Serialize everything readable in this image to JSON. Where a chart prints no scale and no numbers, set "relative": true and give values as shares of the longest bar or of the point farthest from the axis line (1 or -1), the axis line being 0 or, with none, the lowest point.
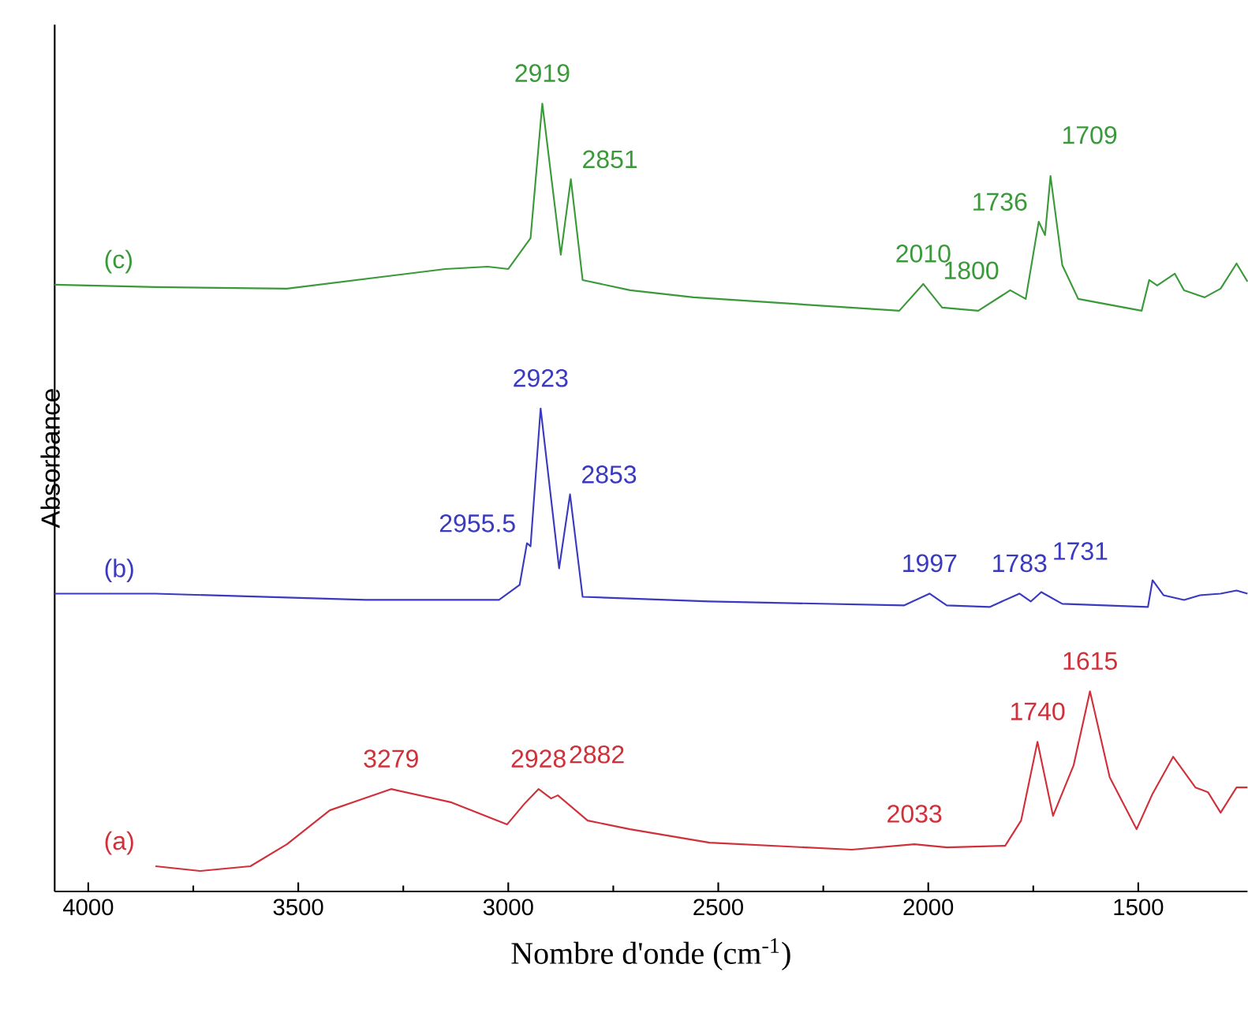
{
  "chart_data": {
    "type": "line",
    "relative": true,
    "xlabel": "Nombre d'onde (cm$^{-1}$)",
    "ylabel": "Absorbance",
    "xlim": [
      4080,
      1240
    ],
    "xticks": [
      4000,
      3500,
      3000,
      2500,
      2000,
      1500
    ],
    "marker": "none",
    "line_style": "solid",
    "grid": false,
    "series": [
      {
        "name": "(c)",
        "color": "#3a9a3a",
        "x": [
          4080,
          3840,
          3527,
          3150,
          3049,
          3000,
          2947,
          2919,
          2875,
          2851,
          2823,
          2710,
          2559,
          2069,
          2012,
          1967,
          1881,
          1805,
          1768,
          1737,
          1722,
          1709,
          1681,
          1643,
          1492,
          1474,
          1455,
          1413,
          1391,
          1342,
          1304,
          1266,
          1240
        ],
        "values": [
          0.77,
          0.767,
          0.765,
          0.79,
          0.793,
          0.79,
          0.829,
          1.0,
          0.808,
          0.904,
          0.776,
          0.763,
          0.754,
          0.737,
          0.771,
          0.741,
          0.737,
          0.763,
          0.752,
          0.85,
          0.833,
          0.908,
          0.795,
          0.752,
          0.737,
          0.776,
          0.769,
          0.784,
          0.763,
          0.754,
          0.765,
          0.797,
          0.774
        ]
      },
      {
        "name": "(b)",
        "color": "#3a3ac0",
        "x": [
          4080,
          3840,
          3339,
          3022,
          2973,
          2955.5,
          2947,
          2923,
          2879,
          2853,
          2823,
          2521,
          2058,
          1997,
          1956,
          1854,
          1783,
          1756,
          1731,
          1681,
          1477,
          1466,
          1440,
          1391,
          1353,
          1304,
          1266,
          1240
        ],
        "values": [
          0.378,
          0.378,
          0.37,
          0.37,
          0.389,
          0.442,
          0.438,
          0.613,
          0.41,
          0.504,
          0.374,
          0.368,
          0.363,
          0.378,
          0.363,
          0.361,
          0.378,
          0.368,
          0.38,
          0.365,
          0.361,
          0.395,
          0.376,
          0.37,
          0.376,
          0.378,
          0.382,
          0.378
        ]
      },
      {
        "name": "(a)",
        "color": "#d0303a",
        "x": [
          3840,
          3734,
          3614,
          3527,
          3425,
          3279,
          3135,
          3003,
          2962,
          2928,
          2898,
          2882,
          2811,
          2710,
          2521,
          2182,
          2033,
          1956,
          1817,
          1779,
          1740,
          1703,
          1654,
          1615,
          1568,
          1504,
          1466,
          1417,
          1364,
          1334,
          1304,
          1266,
          1240
        ],
        "values": [
          0.032,
          0.026,
          0.032,
          0.06,
          0.103,
          0.13,
          0.113,
          0.085,
          0.111,
          0.13,
          0.118,
          0.122,
          0.09,
          0.079,
          0.062,
          0.053,
          0.06,
          0.056,
          0.058,
          0.09,
          0.19,
          0.096,
          0.16,
          0.254,
          0.145,
          0.079,
          0.124,
          0.171,
          0.132,
          0.126,
          0.1,
          0.132,
          0.132
        ]
      }
    ],
    "annotations": [
      {
        "text": "2919",
        "x": 2919,
        "y": 1.0
      },
      {
        "text": "2851",
        "x": 2851,
        "y": 0.904
      },
      {
        "text": "2010",
        "x": 2012,
        "y": 0.771
      },
      {
        "text": "1800",
        "x": 1805,
        "y": 0.763
      },
      {
        "text": "1736",
        "x": 1737,
        "y": 0.85
      },
      {
        "text": "1709",
        "x": 1709,
        "y": 0.908
      },
      {
        "text": "2955.5",
        "x": 2955.5,
        "y": 0.442
      },
      {
        "text": "2923",
        "x": 2923,
        "y": 0.613
      },
      {
        "text": "2853",
        "x": 2853,
        "y": 0.504
      },
      {
        "text": "1997",
        "x": 1997,
        "y": 0.378
      },
      {
        "text": "1783",
        "x": 1783,
        "y": 0.378
      },
      {
        "text": "1731",
        "x": 1731,
        "y": 0.38
      },
      {
        "text": "3279",
        "x": 3279,
        "y": 0.13
      },
      {
        "text": "2928",
        "x": 2928,
        "y": 0.13
      },
      {
        "text": "2882",
        "x": 2882,
        "y": 0.122
      },
      {
        "text": "2033",
        "x": 2033,
        "y": 0.06
      },
      {
        "text": "1740",
        "x": 1740,
        "y": 0.19
      },
      {
        "text": "1615",
        "x": 1615,
        "y": 0.254
      }
    ]
  }
}
